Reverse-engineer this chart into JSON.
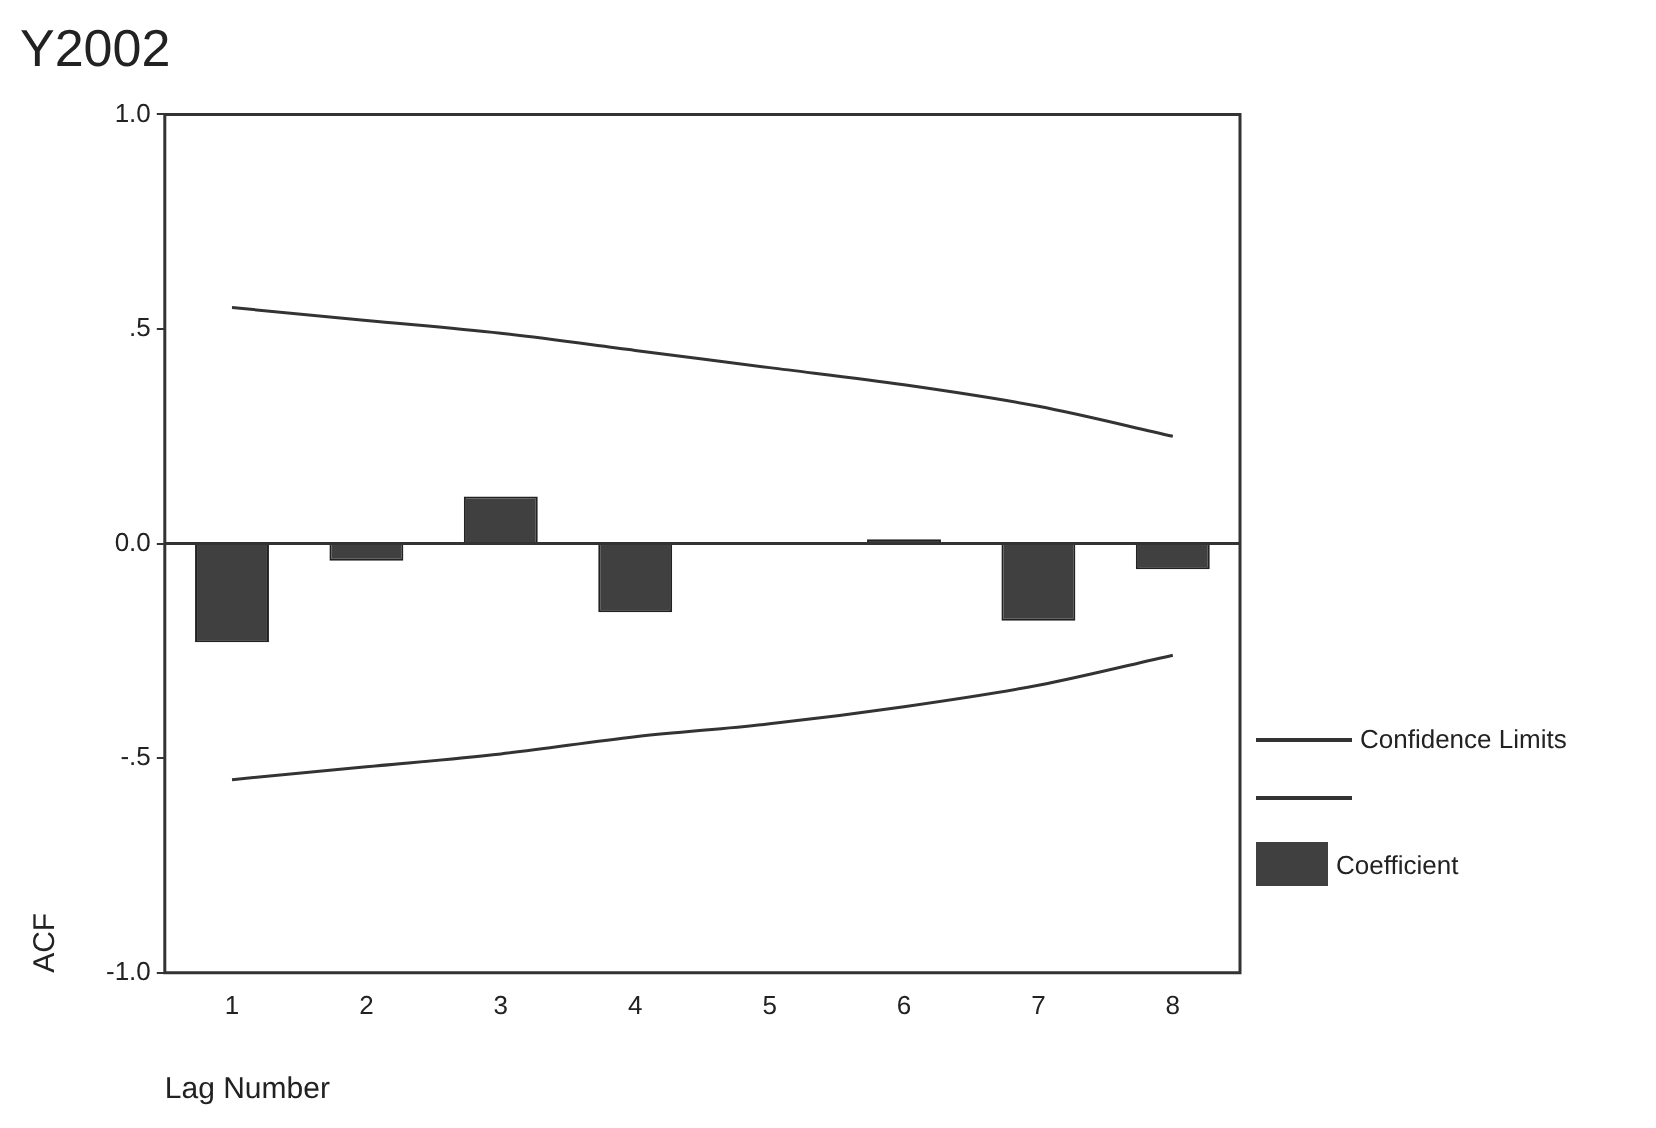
{
  "chart_data": {
    "type": "bar",
    "title": "Y2002",
    "xlabel": "Lag Number",
    "ylabel": "ACF",
    "categories": [
      "1",
      "2",
      "3",
      "4",
      "5",
      "6",
      "7",
      "8"
    ],
    "series": [
      {
        "name": "Coefficient",
        "color": "#404040",
        "values": [
          -0.23,
          -0.04,
          0.11,
          -0.16,
          0,
          0.01,
          -0.18,
          -0.06
        ]
      },
      {
        "name": "Confidence Limits",
        "type": "line",
        "color": "#333333",
        "values": [
          0.55,
          0.52,
          0.49,
          0.45,
          0.41,
          0.37,
          0.32,
          0.25
        ]
      },
      {
        "type": "line",
        "color": "#333333",
        "values": [
          -0.55,
          -0.52,
          -0.49,
          -0.45,
          -0.42,
          -0.38,
          -0.33,
          -0.26
        ]
      }
    ],
    "ylim": [
      -1,
      1
    ],
    "yticks": [
      {
        "value": -1,
        "label": "-1.0"
      },
      {
        "value": -0.5,
        "label": "-.5"
      },
      {
        "value": 0,
        "label": "0.0"
      },
      {
        "value": 0.5,
        "label": ".5"
      },
      {
        "value": 1,
        "label": "1.0"
      }
    ],
    "ref_lines": [
      {
        "axis": "y",
        "value": 0,
        "color": "#333333"
      }
    ],
    "grid": false,
    "legend": "right",
    "marker": "none",
    "line_style": "solid"
  }
}
